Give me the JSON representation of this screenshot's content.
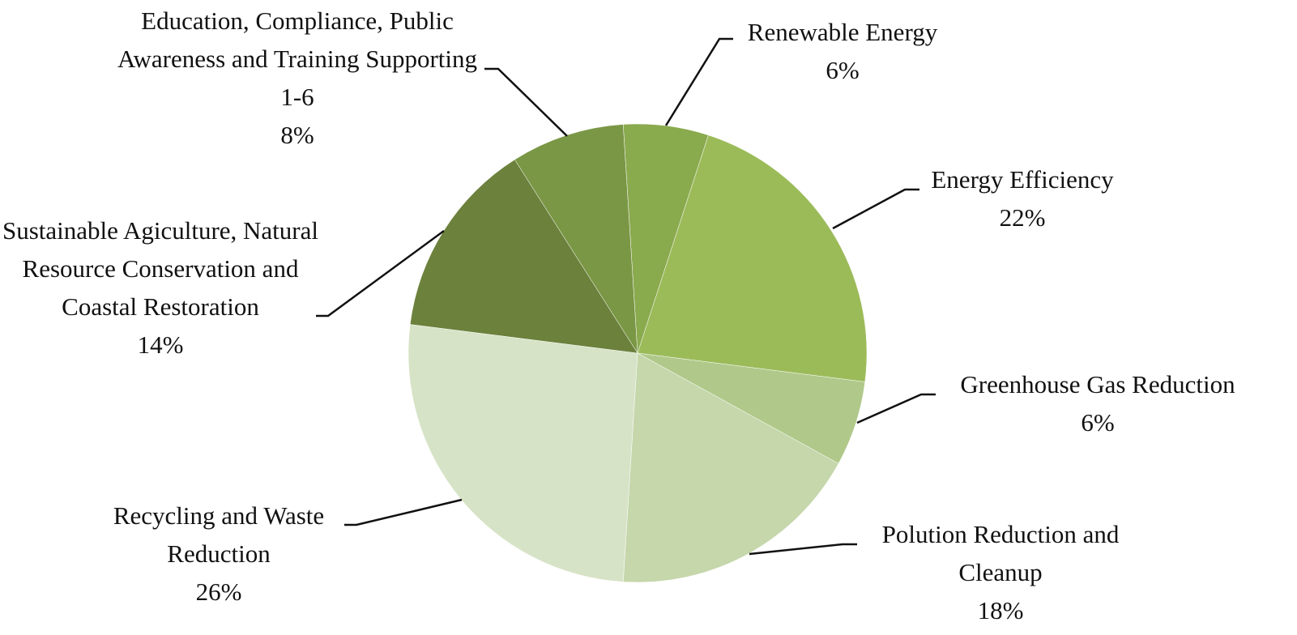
{
  "chart_data": {
    "type": "pie",
    "categories": [
      "Renewable Energy",
      "Energy Efficiency",
      "Greenhouse Gas Reduction",
      "Polution Reduction and Cleanup",
      "Recycling and Waste Reduction",
      "Sustainable Agiculture, Natural Resource Conservation and Coastal Restoration",
      "Education, Compliance, Public Awareness and Training Supporting 1-6"
    ],
    "values": [
      6,
      22,
      6,
      18,
      26,
      14,
      8
    ],
    "value_labels": [
      "6%",
      "22%",
      "6%",
      "18%",
      "26%",
      "14%",
      "8%"
    ],
    "colors": [
      "#8aaa4e",
      "#9bbb59",
      "#b0c98a",
      "#c5d7ab",
      "#d7e3c6",
      "#6b813c",
      "#7a9745"
    ]
  }
}
